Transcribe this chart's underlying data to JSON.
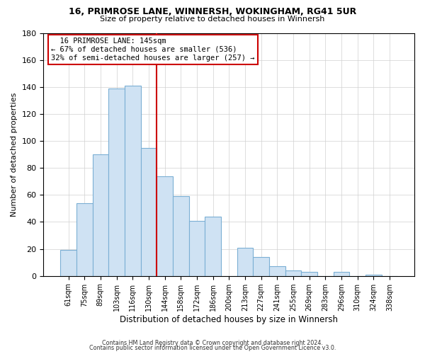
{
  "title1": "16, PRIMROSE LANE, WINNERSH, WOKINGHAM, RG41 5UR",
  "title2": "Size of property relative to detached houses in Winnersh",
  "xlabel": "Distribution of detached houses by size in Winnersh",
  "ylabel": "Number of detached properties",
  "bar_labels": [
    "61sqm",
    "75sqm",
    "89sqm",
    "103sqm",
    "116sqm",
    "130sqm",
    "144sqm",
    "158sqm",
    "172sqm",
    "186sqm",
    "200sqm",
    "213sqm",
    "227sqm",
    "241sqm",
    "255sqm",
    "269sqm",
    "283sqm",
    "296sqm",
    "310sqm",
    "324sqm",
    "338sqm"
  ],
  "bar_values": [
    19,
    54,
    90,
    139,
    141,
    95,
    74,
    59,
    41,
    44,
    0,
    21,
    14,
    7,
    4,
    3,
    0,
    3,
    0,
    1,
    0
  ],
  "bar_color": "#cfe2f3",
  "bar_edge_color": "#7bafd4",
  "vline_color": "#cc0000",
  "annotation_title": "16 PRIMROSE LANE: 145sqm",
  "annotation_line1": "← 67% of detached houses are smaller (536)",
  "annotation_line2": "32% of semi-detached houses are larger (257) →",
  "annotation_box_color": "#ffffff",
  "annotation_box_edge": "#cc0000",
  "ylim": [
    0,
    180
  ],
  "yticks": [
    0,
    20,
    40,
    60,
    80,
    100,
    120,
    140,
    160,
    180
  ],
  "footer1": "Contains HM Land Registry data © Crown copyright and database right 2024.",
  "footer2": "Contains public sector information licensed under the Open Government Licence v3.0."
}
